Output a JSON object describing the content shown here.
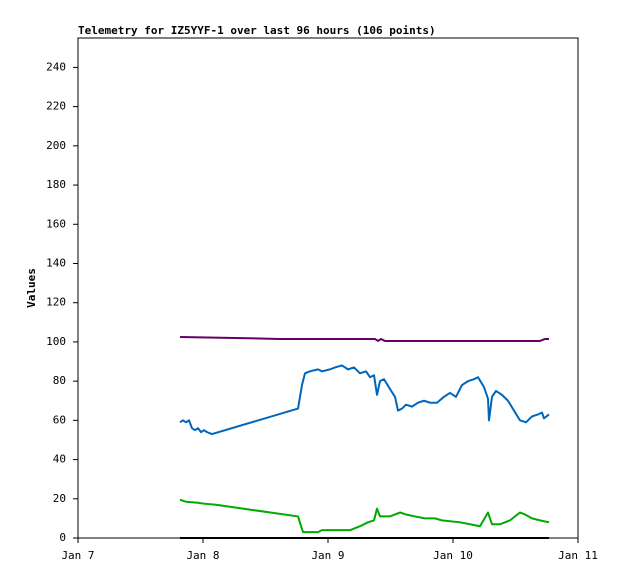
{
  "chart_data": {
    "type": "line",
    "title": "Telemetry for IZ5YYF-1 over last 96 hours (106 points)",
    "y_label": "Values",
    "xlim": [
      0,
      4
    ],
    "xticks": [
      {
        "value": 0,
        "label": "Jan 7"
      },
      {
        "value": 1,
        "label": "Jan 8"
      },
      {
        "value": 2,
        "label": "Jan 9"
      },
      {
        "value": 3,
        "label": "Jan 10"
      },
      {
        "value": 4,
        "label": "Jan 11"
      }
    ],
    "ylim": [
      0,
      255
    ],
    "yticks": [
      0,
      20,
      40,
      60,
      80,
      100,
      120,
      140,
      160,
      180,
      200,
      220,
      240
    ],
    "grid": false,
    "series": [
      {
        "color": "#660066",
        "x": [
          0.816,
          1.256,
          1.616,
          2.376,
          2.4,
          2.424,
          2.456,
          3.696,
          3.736,
          3.768
        ],
        "values": [
          102.5,
          102,
          101.5,
          101.5,
          100.5,
          101.5,
          100.5,
          100.5,
          101.5,
          101.5
        ]
      },
      {
        "color": "#0066bb",
        "x": [
          0.816,
          0.84,
          0.864,
          0.888,
          0.912,
          0.936,
          0.96,
          0.984,
          1.008,
          1.032,
          1.072,
          1.76,
          1.792,
          1.816,
          1.856,
          1.92,
          1.952,
          2.016,
          2.056,
          2.112,
          2.16,
          2.208,
          2.256,
          2.304,
          2.336,
          2.368,
          2.392,
          2.416,
          2.448,
          2.496,
          2.536,
          2.56,
          2.592,
          2.624,
          2.672,
          2.72,
          2.768,
          2.816,
          2.872,
          2.928,
          2.976,
          3.024,
          3.072,
          3.12,
          3.168,
          3.2,
          3.248,
          3.28,
          3.288,
          3.312,
          3.344,
          3.392,
          3.44,
          3.488,
          3.536,
          3.584,
          3.632,
          3.68,
          3.712,
          3.728,
          3.768
        ],
        "values": [
          59,
          60,
          59,
          60,
          56,
          55,
          56,
          54,
          55,
          54,
          53,
          66,
          78,
          84,
          85,
          86,
          85,
          86,
          87,
          88,
          86,
          87,
          84,
          85,
          82,
          83,
          73,
          80,
          81,
          76,
          72,
          65,
          66,
          68,
          67,
          69,
          70,
          69,
          69,
          72,
          74,
          72,
          78,
          80,
          81,
          82,
          77,
          71,
          60,
          72,
          75,
          73,
          70,
          65,
          60,
          59,
          62,
          63,
          64,
          61,
          63
        ]
      },
      {
        "color": "#00aa00",
        "x": [
          0.816,
          0.864,
          0.96,
          1.008,
          1.096,
          1.76,
          1.8,
          1.92,
          1.952,
          2.096,
          2.176,
          2.256,
          2.32,
          2.368,
          2.392,
          2.416,
          2.496,
          2.536,
          2.576,
          2.624,
          2.696,
          2.776,
          2.856,
          2.912,
          3.056,
          3.136,
          3.216,
          3.28,
          3.312,
          3.376,
          3.456,
          3.536,
          3.576,
          3.632,
          3.696,
          3.768
        ],
        "values": [
          19.5,
          18.5,
          18,
          17.5,
          17,
          11,
          3,
          3,
          4,
          4,
          4,
          6,
          8,
          9,
          15,
          11,
          11,
          12,
          13,
          12,
          11,
          10,
          10,
          9,
          8,
          7,
          6,
          13,
          7,
          7,
          9,
          13,
          12,
          10,
          9,
          8
        ]
      },
      {
        "color": "#000000",
        "x": [
          0.816,
          3.768
        ],
        "values": [
          0,
          0
        ]
      }
    ]
  }
}
